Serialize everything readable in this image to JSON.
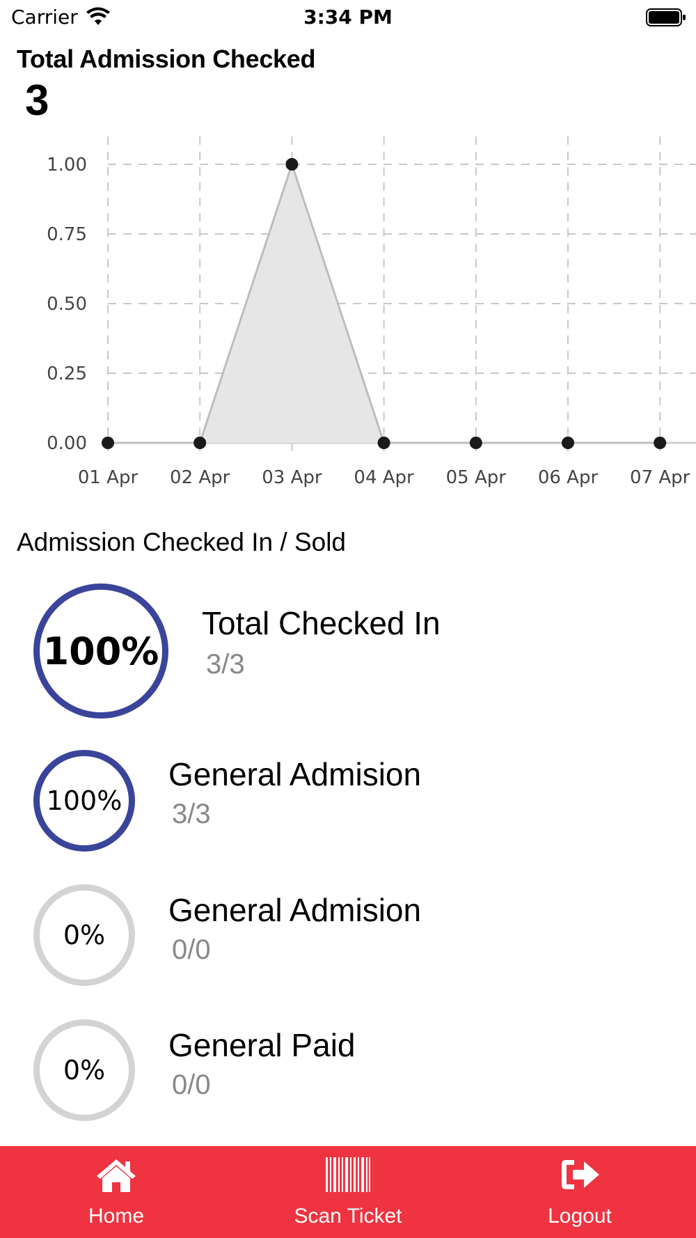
{
  "status_bar": {
    "carrier": "Carrier",
    "time": "3:34 PM"
  },
  "header": {
    "title": "Total Admission Checked",
    "count": "3"
  },
  "chart_data": {
    "type": "line",
    "categories": [
      "01 Apr",
      "02 Apr",
      "03 Apr",
      "04 Apr",
      "05 Apr",
      "06 Apr",
      "07 Apr"
    ],
    "series": [
      {
        "values": [
          0,
          0,
          1,
          0,
          0,
          0,
          0
        ]
      }
    ],
    "y_ticks": [
      "0.00",
      "0.25",
      "0.50",
      "0.75",
      "1.00"
    ],
    "ylim": [
      0,
      1
    ],
    "area_fill": true,
    "grid": true,
    "colors": {
      "line": "#bdbdbd",
      "fill": "#e6e6e6",
      "point": "#1a1a1a",
      "grid": "#c8c8c8"
    }
  },
  "section": {
    "title": "Admission Checked In / Sold"
  },
  "stats": [
    {
      "percent_text": "100%",
      "percent": 100,
      "label": "Total Checked In",
      "value": "3/3"
    },
    {
      "percent_text": "100%",
      "percent": 100,
      "label": "General Admision",
      "value": "3/3"
    },
    {
      "percent_text": "0%",
      "percent": 0,
      "label": "General Admision",
      "value": "0/0"
    },
    {
      "percent_text": "0%",
      "percent": 0,
      "label": "General Paid",
      "value": "0/0"
    }
  ],
  "ring_colors": {
    "active": "#3a449b",
    "inactive": "#d3d3d3"
  },
  "tab_bar": {
    "background": "#ef3340",
    "items": [
      {
        "label": "Home",
        "icon": "home-icon"
      },
      {
        "label": "Scan Ticket",
        "icon": "barcode-icon"
      },
      {
        "label": "Logout",
        "icon": "logout-icon"
      }
    ]
  }
}
